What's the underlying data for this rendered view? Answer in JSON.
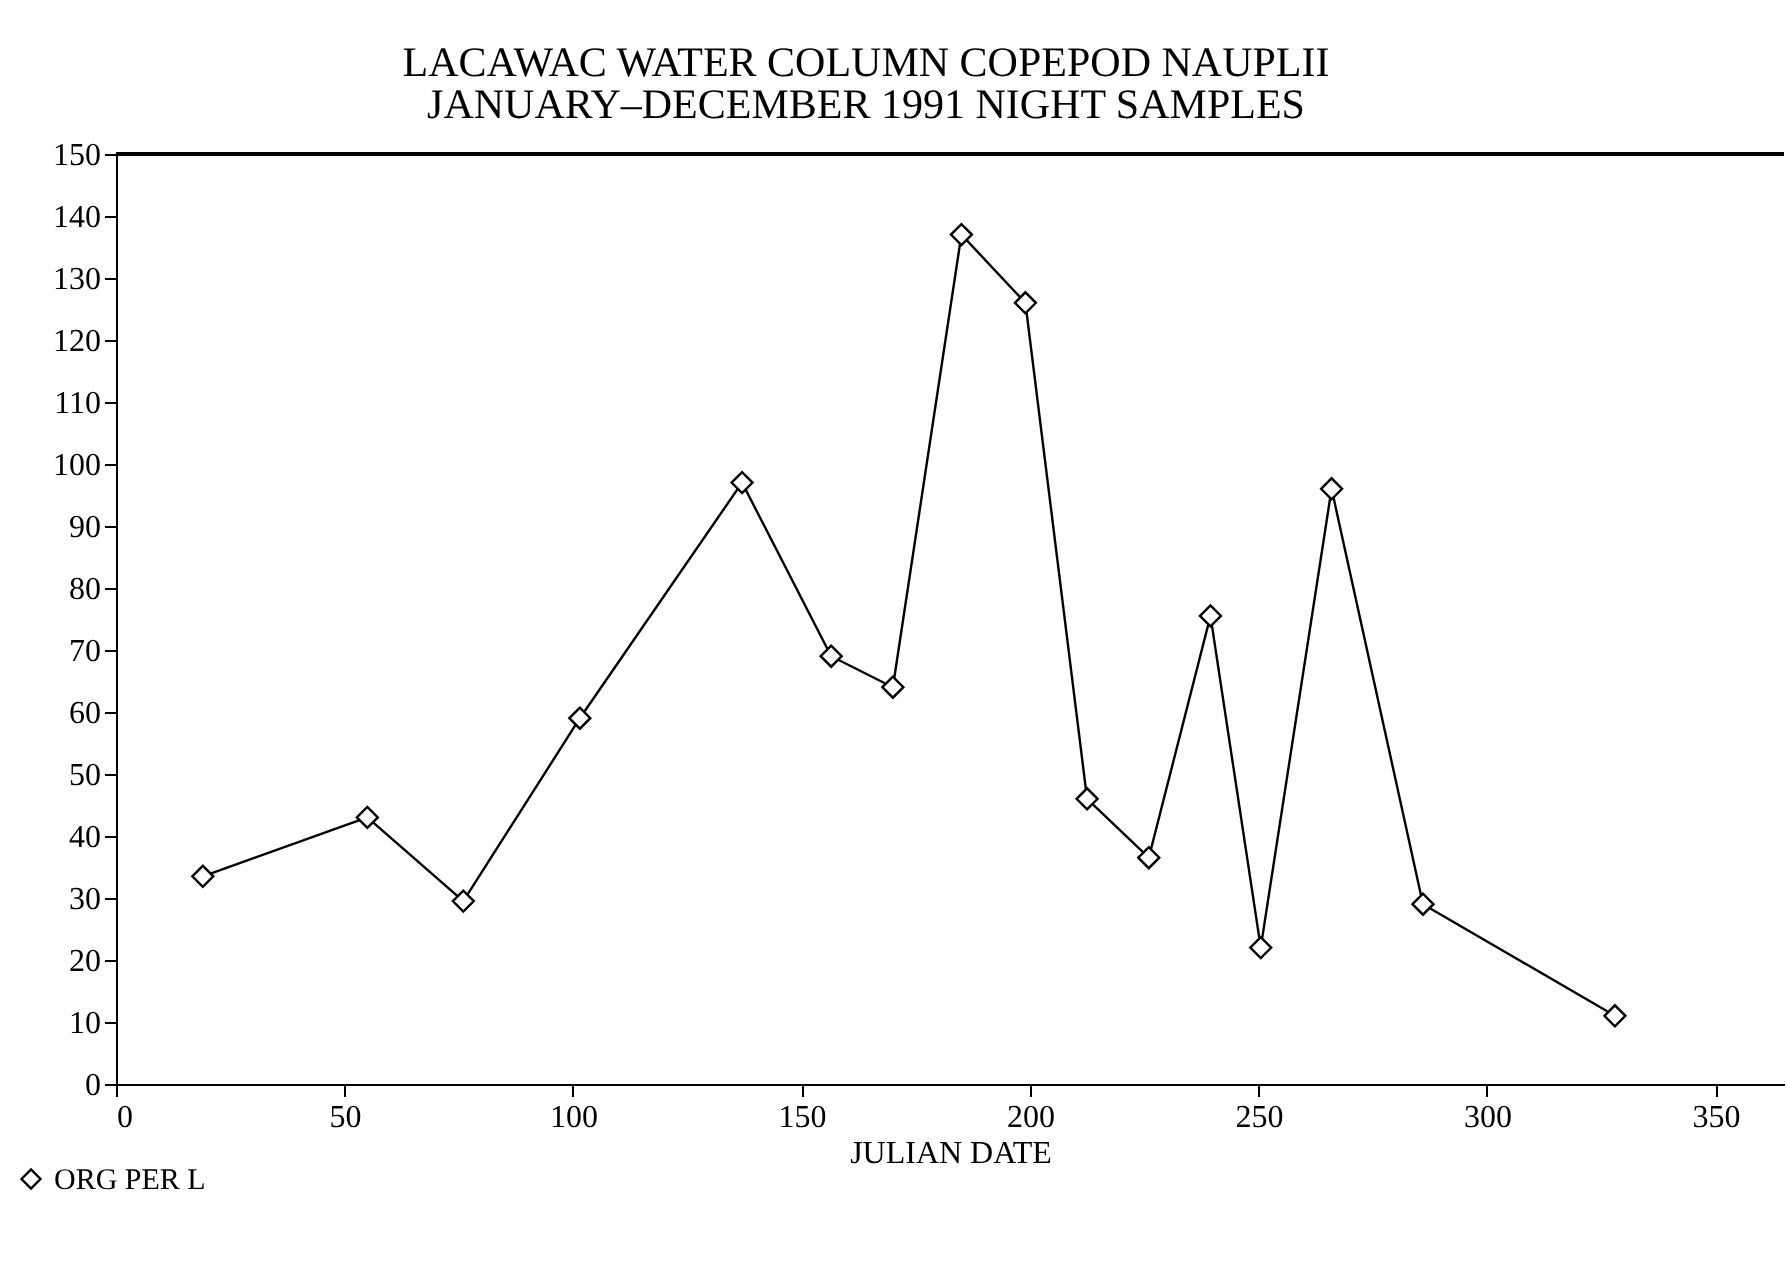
{
  "chart_data": {
    "type": "line",
    "title": "LACAWAC WATER COLUMN COPEPOD NAUPLII",
    "subtitle": "JANUARY–DECEMBER 1991 NIGHT SAMPLES",
    "xlabel": "JULIAN DATE",
    "x": [
      19,
      55,
      76,
      101.5,
      137,
      156.5,
      170,
      185,
      199,
      212.5,
      226,
      239.5,
      250.5,
      266,
      286,
      328
    ],
    "series": [
      {
        "name": "ORG PER L",
        "color": "#000000",
        "values": [
          33.5,
          43,
          29.5,
          59,
          97,
          69,
          64,
          137,
          126,
          46,
          36.5,
          75.5,
          22,
          96,
          29,
          11
        ]
      }
    ],
    "xlim": [
      0,
      365
    ],
    "xticks": [
      0,
      50,
      100,
      150,
      200,
      250,
      300,
      350
    ],
    "ylim": [
      0,
      150
    ],
    "yticks": [
      0,
      10,
      20,
      30,
      40,
      50,
      60,
      70,
      80,
      90,
      100,
      110,
      120,
      130,
      140,
      150
    ],
    "grid": false,
    "legend": "bottom",
    "marker": "diamond",
    "line_style": "solid"
  }
}
